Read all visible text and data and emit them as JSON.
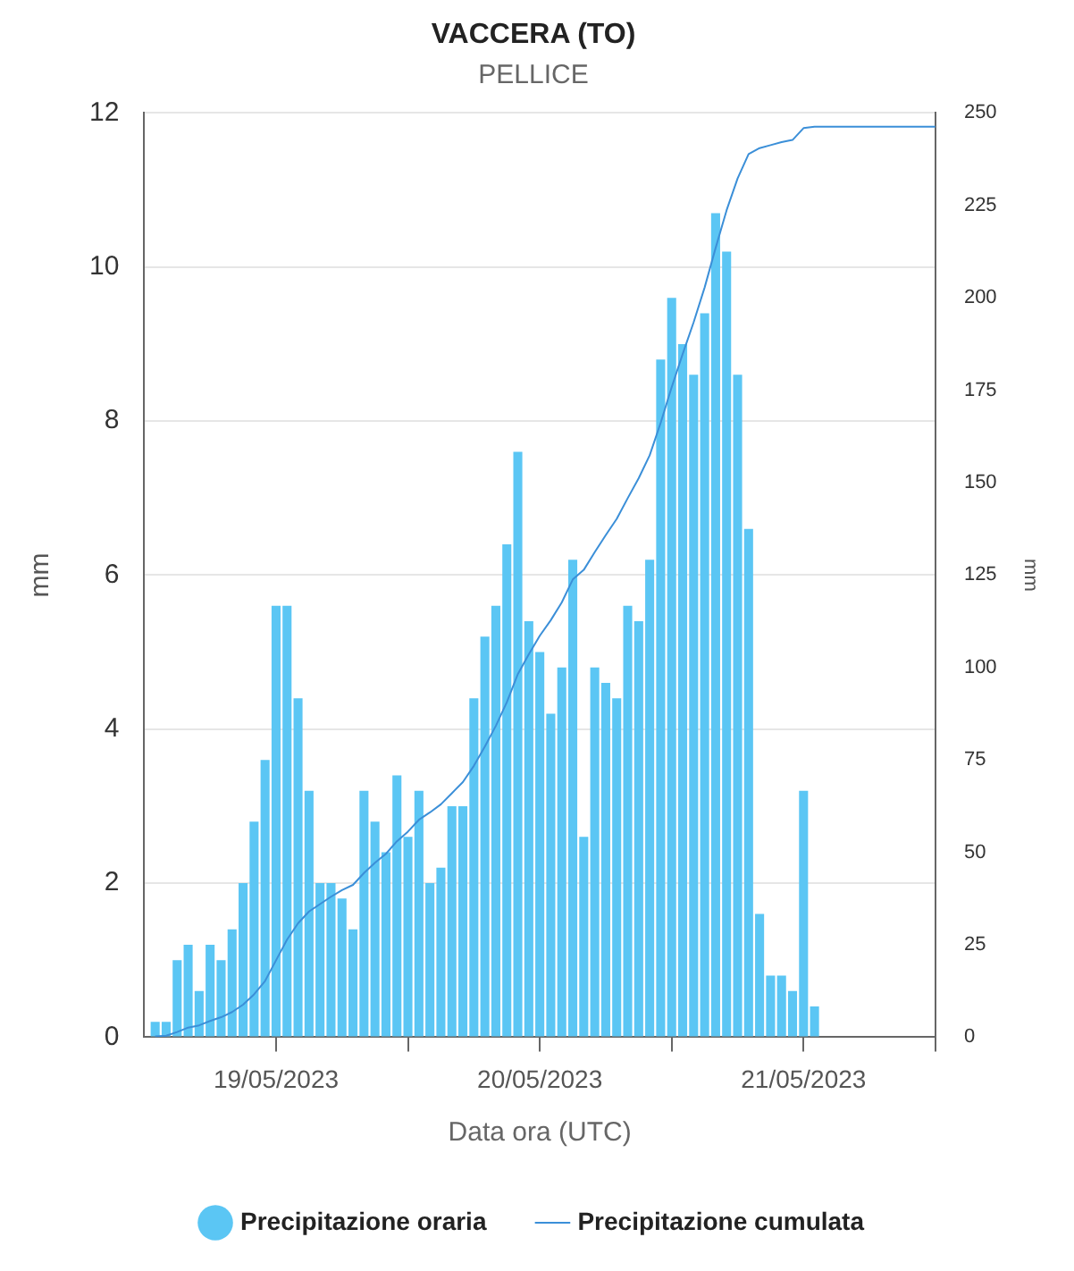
{
  "chart_data": {
    "type": "bar",
    "title": "VACCERA (TO)",
    "subtitle": "PELLICE",
    "xlabel": "Data ora (UTC)",
    "ylabel": "mm",
    "y2label": "mm",
    "x": [
      "2023-05-18T13:00",
      "2023-05-18T14:00",
      "2023-05-18T15:00",
      "2023-05-18T16:00",
      "2023-05-18T17:00",
      "2023-05-18T18:00",
      "2023-05-18T19:00",
      "2023-05-18T20:00",
      "2023-05-18T21:00",
      "2023-05-18T22:00",
      "2023-05-18T23:00",
      "2023-05-19T00:00",
      "2023-05-19T01:00",
      "2023-05-19T02:00",
      "2023-05-19T03:00",
      "2023-05-19T04:00",
      "2023-05-19T05:00",
      "2023-05-19T06:00",
      "2023-05-19T07:00",
      "2023-05-19T08:00",
      "2023-05-19T09:00",
      "2023-05-19T10:00",
      "2023-05-19T11:00",
      "2023-05-19T12:00",
      "2023-05-19T13:00",
      "2023-05-19T14:00",
      "2023-05-19T15:00",
      "2023-05-19T16:00",
      "2023-05-19T17:00",
      "2023-05-19T18:00",
      "2023-05-19T19:00",
      "2023-05-19T20:00",
      "2023-05-19T21:00",
      "2023-05-19T22:00",
      "2023-05-19T23:00",
      "2023-05-20T00:00",
      "2023-05-20T01:00",
      "2023-05-20T02:00",
      "2023-05-20T03:00",
      "2023-05-20T04:00",
      "2023-05-20T05:00",
      "2023-05-20T06:00",
      "2023-05-20T07:00",
      "2023-05-20T08:00",
      "2023-05-20T09:00",
      "2023-05-20T10:00",
      "2023-05-20T11:00",
      "2023-05-20T12:00",
      "2023-05-20T13:00",
      "2023-05-20T14:00",
      "2023-05-20T15:00",
      "2023-05-20T16:00",
      "2023-05-20T17:00",
      "2023-05-20T18:00",
      "2023-05-20T19:00",
      "2023-05-20T20:00",
      "2023-05-20T21:00",
      "2023-05-20T22:00",
      "2023-05-20T23:00",
      "2023-05-21T00:00",
      "2023-05-21T01:00"
    ],
    "series": [
      {
        "name": "Precipitazione oraria",
        "color": "#5bc6f4",
        "values": [
          0.2,
          0.2,
          1.0,
          1.2,
          0.6,
          1.2,
          1.0,
          1.4,
          2.0,
          2.8,
          3.6,
          5.6,
          5.6,
          4.4,
          3.2,
          2.0,
          2.0,
          1.8,
          1.4,
          3.2,
          2.8,
          2.4,
          3.4,
          2.6,
          3.2,
          2.0,
          2.2,
          3.0,
          3.0,
          4.4,
          5.2,
          5.6,
          6.4,
          7.6,
          5.4,
          5.0,
          4.2,
          4.8,
          6.2,
          2.6,
          4.8,
          4.6,
          4.4,
          5.6,
          5.4,
          6.2,
          8.8,
          9.6,
          9.0,
          8.6,
          9.4,
          10.7,
          10.2,
          8.6,
          6.6,
          1.6,
          0.8,
          0.8,
          0.6,
          3.2,
          0.4
        ]
      },
      {
        "name": "Precipitazione cumulata",
        "type": "line",
        "axis": "y2",
        "color": "#3b8fd8",
        "x": [
          "2023-05-18T13:00",
          "2023-05-18T14:00",
          "2023-05-18T15:00",
          "2023-05-18T16:00",
          "2023-05-18T17:00",
          "2023-05-18T18:00",
          "2023-05-18T19:00",
          "2023-05-18T20:00",
          "2023-05-18T21:00",
          "2023-05-18T22:00",
          "2023-05-18T23:00",
          "2023-05-19T00:00",
          "2023-05-19T01:00",
          "2023-05-19T02:00",
          "2023-05-19T03:00",
          "2023-05-19T04:00",
          "2023-05-19T05:00",
          "2023-05-19T06:00",
          "2023-05-19T07:00",
          "2023-05-19T08:00",
          "2023-05-19T09:00",
          "2023-05-19T10:00",
          "2023-05-19T11:00",
          "2023-05-19T12:00",
          "2023-05-19T13:00",
          "2023-05-19T14:00",
          "2023-05-19T15:00",
          "2023-05-19T16:00",
          "2023-05-19T17:00",
          "2023-05-19T18:00",
          "2023-05-19T19:00",
          "2023-05-19T20:00",
          "2023-05-19T21:00",
          "2023-05-19T22:00",
          "2023-05-19T23:00",
          "2023-05-20T00:00",
          "2023-05-20T01:00",
          "2023-05-20T02:00",
          "2023-05-20T03:00",
          "2023-05-20T04:00",
          "2023-05-20T05:00",
          "2023-05-20T06:00",
          "2023-05-20T07:00",
          "2023-05-20T08:00",
          "2023-05-20T09:00",
          "2023-05-20T10:00",
          "2023-05-20T11:00",
          "2023-05-20T12:00",
          "2023-05-20T13:00",
          "2023-05-20T14:00",
          "2023-05-20T15:00",
          "2023-05-20T16:00",
          "2023-05-20T17:00",
          "2023-05-20T18:00",
          "2023-05-20T19:00",
          "2023-05-20T20:00",
          "2023-05-20T21:00",
          "2023-05-20T22:00",
          "2023-05-20T23:00",
          "2023-05-21T00:00",
          "2023-05-21T01:00",
          "2023-05-21T12:00"
        ],
        "values": [
          0.2,
          0.4,
          1.4,
          2.6,
          3.2,
          4.4,
          5.4,
          6.8,
          8.8,
          11.6,
          15.2,
          20.8,
          26.4,
          30.8,
          34.0,
          36.0,
          38.0,
          39.8,
          41.2,
          44.4,
          47.2,
          49.6,
          53.0,
          55.6,
          58.8,
          60.8,
          63.0,
          66.0,
          69.0,
          73.4,
          78.6,
          84.2,
          90.6,
          98.2,
          103.6,
          108.6,
          112.8,
          117.6,
          123.8,
          126.4,
          131.2,
          135.8,
          140.2,
          145.8,
          151.2,
          157.4,
          166.2,
          175.8,
          184.8,
          193.4,
          202.8,
          213.5,
          223.7,
          232.3,
          238.9,
          240.5,
          241.3,
          242.1,
          242.7,
          245.9,
          246.3,
          246.3
        ]
      }
    ],
    "xlim": [
      "2023-05-18T12:00",
      "2023-05-21T12:00"
    ],
    "xticks": [
      {
        "value": "2023-05-19T00:00",
        "label": "19/05/2023"
      },
      {
        "value": "2023-05-19T12:00",
        "label": null
      },
      {
        "value": "2023-05-20T00:00",
        "label": "20/05/2023"
      },
      {
        "value": "2023-05-20T12:00",
        "label": null
      },
      {
        "value": "2023-05-21T00:00",
        "label": "21/05/2023"
      },
      {
        "value": "2023-05-21T12:00",
        "label": null
      }
    ],
    "ylim": [
      0,
      12
    ],
    "yticks": [
      0,
      2,
      4,
      6,
      8,
      10,
      12
    ],
    "y2lim": [
      0,
      250
    ],
    "y2ticks": [
      0,
      25,
      50,
      75,
      100,
      125,
      150,
      175,
      200,
      225,
      250
    ],
    "grid": "y",
    "legend": "bottom",
    "marker": "none",
    "line_style": "solid"
  }
}
